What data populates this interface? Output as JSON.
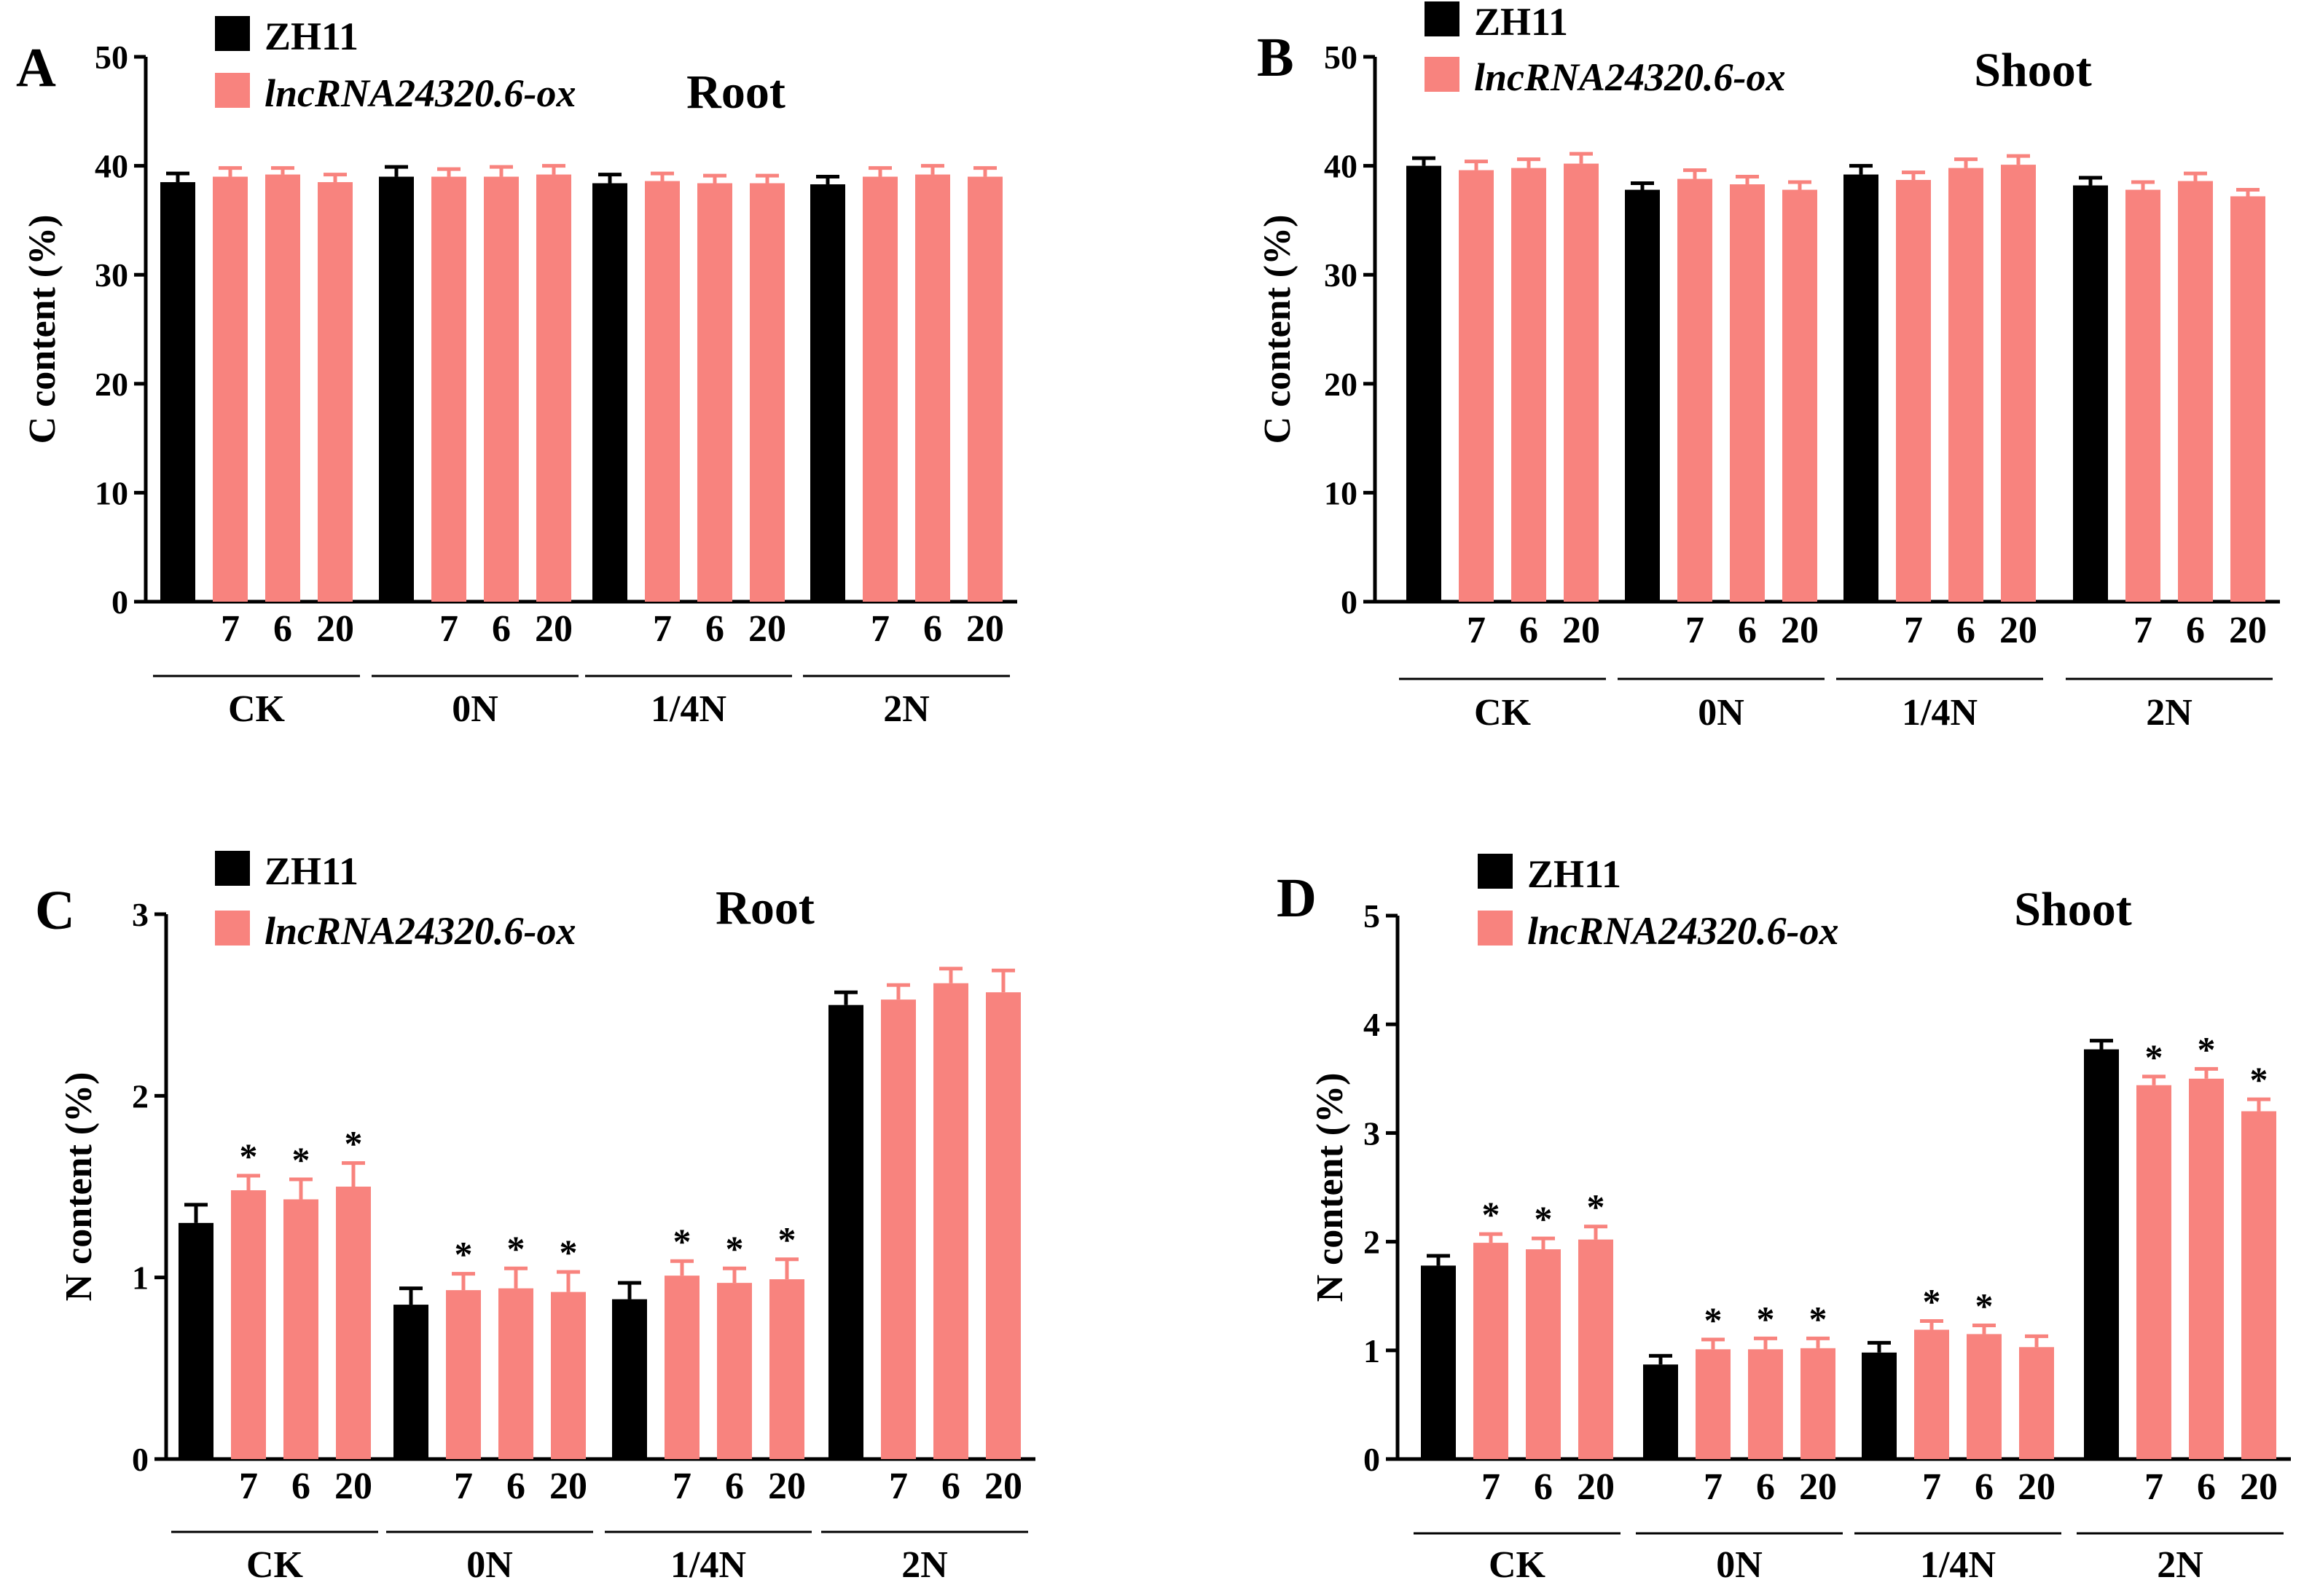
{
  "colors": {
    "zh11": "#000000",
    "ox": "#f8837e",
    "axis": "#000000"
  },
  "chart_data": [
    {
      "type": "bar",
      "panel": "A",
      "title": "Root",
      "ylabel": "C content (%)",
      "ylim": [
        0,
        50
      ],
      "yticks": [
        "0",
        "10",
        "20",
        "30",
        "40",
        "50"
      ],
      "legend": [
        "ZH11",
        "lncRNA24320.6-ox"
      ],
      "groups": [
        "CK",
        "0N",
        "1/4N",
        "2N"
      ],
      "sample_labels": [
        "7",
        "6",
        "20"
      ],
      "values": [
        [
          38.5,
          39.0,
          39.2,
          38.5
        ],
        [
          39.0,
          39.0,
          39.0,
          39.2
        ],
        [
          38.4,
          38.6,
          38.4,
          38.4
        ],
        [
          38.3,
          39.0,
          39.2,
          39.0
        ]
      ],
      "errors": [
        [
          0.8,
          0.8,
          0.6,
          0.7
        ],
        [
          0.9,
          0.7,
          0.9,
          0.8
        ],
        [
          0.8,
          0.7,
          0.7,
          0.7
        ],
        [
          0.7,
          0.8,
          0.8,
          0.8
        ]
      ],
      "significance": [
        [
          "",
          "",
          "",
          ""
        ],
        [
          "",
          "",
          "",
          ""
        ],
        [
          "",
          "",
          "",
          ""
        ],
        [
          "",
          "",
          "",
          ""
        ]
      ]
    },
    {
      "type": "bar",
      "panel": "B",
      "title": "Shoot",
      "ylabel": "C content (%)",
      "ylim": [
        0,
        50
      ],
      "yticks": [
        "0",
        "10",
        "20",
        "30",
        "40",
        "50"
      ],
      "legend": [
        "ZH11",
        "lncRNA24320.6-ox"
      ],
      "groups": [
        "CK",
        "0N",
        "1/4N",
        "2N"
      ],
      "sample_labels": [
        "7",
        "6",
        "20"
      ],
      "values": [
        [
          40.0,
          39.6,
          39.8,
          40.2
        ],
        [
          37.8,
          38.8,
          38.3,
          37.8
        ],
        [
          39.2,
          38.7,
          39.8,
          40.1
        ],
        [
          38.2,
          37.8,
          38.6,
          37.2
        ]
      ],
      "errors": [
        [
          0.7,
          0.8,
          0.8,
          0.9
        ],
        [
          0.6,
          0.8,
          0.7,
          0.7
        ],
        [
          0.8,
          0.7,
          0.8,
          0.8
        ],
        [
          0.7,
          0.7,
          0.7,
          0.6
        ]
      ],
      "significance": [
        [
          "",
          "",
          "",
          ""
        ],
        [
          "",
          "",
          "",
          ""
        ],
        [
          "",
          "",
          "",
          ""
        ],
        [
          "",
          "",
          "",
          ""
        ]
      ]
    },
    {
      "type": "bar",
      "panel": "C",
      "title": "Root",
      "ylabel": "N content (%)",
      "ylim": [
        0,
        3
      ],
      "yticks": [
        "0",
        "1",
        "2",
        "3"
      ],
      "legend": [
        "ZH11",
        "lncRNA24320.6-ox"
      ],
      "groups": [
        "CK",
        "0N",
        "1/4N",
        "2N"
      ],
      "sample_labels": [
        "7",
        "6",
        "20"
      ],
      "values": [
        [
          1.3,
          1.48,
          1.43,
          1.5
        ],
        [
          0.85,
          0.93,
          0.94,
          0.92
        ],
        [
          0.88,
          1.01,
          0.97,
          0.99
        ],
        [
          2.5,
          2.53,
          2.62,
          2.57
        ]
      ],
      "errors": [
        [
          0.1,
          0.08,
          0.11,
          0.13
        ],
        [
          0.09,
          0.09,
          0.11,
          0.11
        ],
        [
          0.09,
          0.08,
          0.08,
          0.11
        ],
        [
          0.07,
          0.08,
          0.08,
          0.12
        ]
      ],
      "significance": [
        [
          "",
          "*",
          "*",
          "*"
        ],
        [
          "",
          "*",
          "*",
          "*"
        ],
        [
          "",
          "*",
          "*",
          "*"
        ],
        [
          "",
          "",
          "",
          ""
        ]
      ]
    },
    {
      "type": "bar",
      "panel": "D",
      "title": "Shoot",
      "ylabel": "N content (%)",
      "ylim": [
        0,
        5
      ],
      "yticks": [
        "0",
        "1",
        "2",
        "3",
        "4",
        "5"
      ],
      "legend": [
        "ZH11",
        "lncRNA24320.6-ox"
      ],
      "groups": [
        "CK",
        "0N",
        "1/4N",
        "2N"
      ],
      "sample_labels": [
        "7",
        "6",
        "20"
      ],
      "values": [
        [
          1.78,
          1.99,
          1.93,
          2.02
        ],
        [
          0.87,
          1.01,
          1.01,
          1.02
        ],
        [
          0.98,
          1.19,
          1.15,
          1.03
        ],
        [
          3.77,
          3.44,
          3.5,
          3.2
        ]
      ],
      "errors": [
        [
          0.09,
          0.08,
          0.1,
          0.12
        ],
        [
          0.08,
          0.09,
          0.1,
          0.09
        ],
        [
          0.09,
          0.08,
          0.08,
          0.1
        ],
        [
          0.08,
          0.08,
          0.09,
          0.11
        ]
      ],
      "significance": [
        [
          "",
          "*",
          "*",
          "*"
        ],
        [
          "",
          "*",
          "*",
          "*"
        ],
        [
          "",
          "*",
          "*",
          ""
        ],
        [
          "",
          "*",
          "*",
          "*"
        ]
      ]
    }
  ]
}
